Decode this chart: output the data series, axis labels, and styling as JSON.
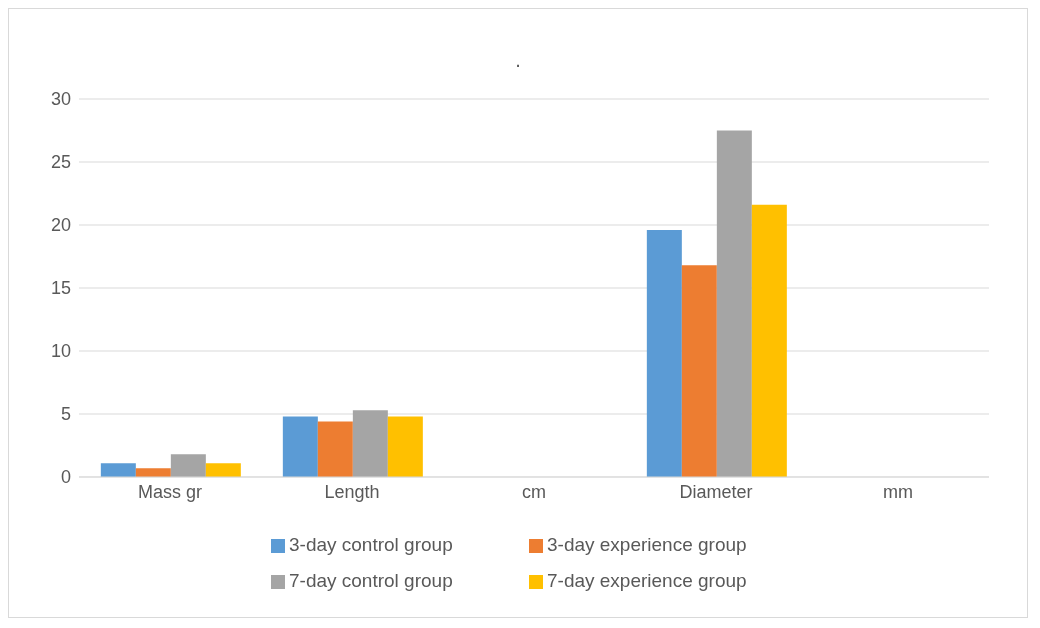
{
  "chart_data": {
    "type": "bar",
    "title": ".",
    "categories": [
      "Mass gr",
      "Length",
      "cm",
      "Diameter",
      "mm"
    ],
    "series": [
      {
        "name": "3-day control group",
        "color": "#5b9bd5",
        "values": [
          1.1,
          4.8,
          null,
          19.6,
          null
        ]
      },
      {
        "name": "3-day experience group",
        "color": "#ed7d31",
        "values": [
          0.7,
          4.4,
          null,
          16.8,
          null
        ]
      },
      {
        "name": "7-day control group",
        "color": "#a5a5a5",
        "values": [
          1.8,
          5.3,
          null,
          27.5,
          null
        ]
      },
      {
        "name": "7-day experience group",
        "color": "#ffc000",
        "values": [
          1.1,
          4.8,
          null,
          21.6,
          null
        ]
      }
    ],
    "ylim": [
      0,
      30
    ],
    "yticks": [
      0,
      5,
      10,
      15,
      20,
      25,
      30
    ],
    "grid": "y",
    "legend": "bottom"
  }
}
